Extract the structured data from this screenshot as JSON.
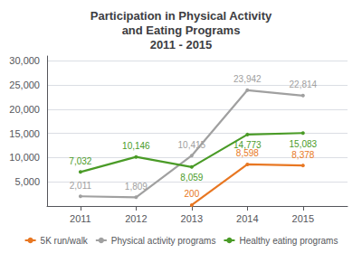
{
  "chart_data": {
    "type": "line",
    "title": "Participation in Physical Activity\nand Eating Programs\n2011 - 2015",
    "x": [
      2011,
      2012,
      2013,
      2014,
      2015
    ],
    "xlim": [
      2010.4,
      2015.8
    ],
    "xticks": [
      2011,
      2012,
      2013,
      2014,
      2015
    ],
    "ylim": [
      0,
      31000
    ],
    "yticks": [
      {
        "value": 5000,
        "label": "5,000"
      },
      {
        "value": 10000,
        "label": "10,000"
      },
      {
        "value": 15000,
        "label": "15,000"
      },
      {
        "value": 20000,
        "label": "20,000"
      },
      {
        "value": 25000,
        "label": "25,000"
      },
      {
        "value": 30000,
        "label": "30,000"
      }
    ],
    "grid": true,
    "legend": "bottom",
    "data_labels": true,
    "series": [
      {
        "name": "5K run/walk",
        "color": "#E87722",
        "values": [
          null,
          null,
          200,
          8598,
          8378
        ],
        "value_labels": [
          null,
          null,
          "200",
          "8,598",
          "8,378"
        ]
      },
      {
        "name": "Physical activity programs",
        "color": "#A0A0A0",
        "values": [
          2011,
          1809,
          10415,
          23942,
          22814
        ],
        "value_labels": [
          "2,011",
          "1,809",
          "10,415",
          "23,942",
          "22,814"
        ]
      },
      {
        "name": "Healthy eating programs",
        "color": "#4A9B27",
        "values": [
          7032,
          10146,
          8059,
          14773,
          15083
        ],
        "value_labels": [
          "7,032",
          "10,146",
          "8,059",
          "14,773",
          "15,083"
        ]
      }
    ]
  }
}
